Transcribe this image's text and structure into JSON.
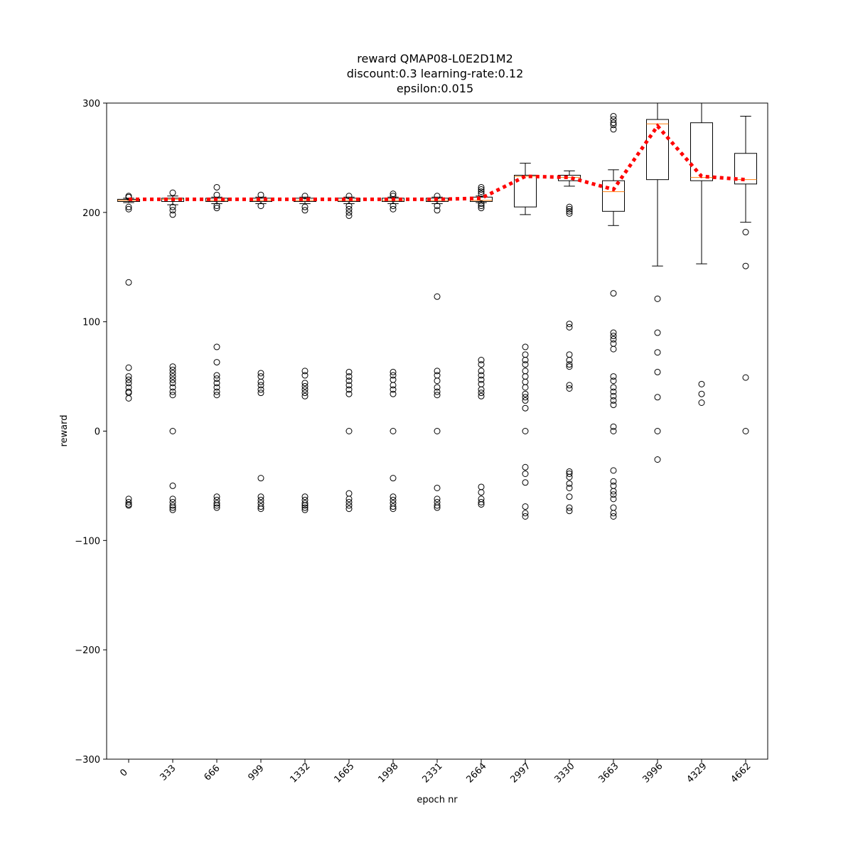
{
  "chart_data": {
    "type": "box",
    "title": [
      "reward QMAP08-L0E2D1M2",
      "discount:0.3 learning-rate:0.12",
      "epsilon:0.015"
    ],
    "x_label": "epoch nr",
    "y_label": "reward",
    "categories": [
      "0",
      "333",
      "666",
      "999",
      "1332",
      "1665",
      "1998",
      "2331",
      "2664",
      "2997",
      "3330",
      "3663",
      "3996",
      "4329",
      "4662"
    ],
    "ylim": [
      -300,
      300
    ],
    "yticks": [
      {
        "value": -300,
        "label": "−300"
      },
      {
        "value": -200,
        "label": "−200"
      },
      {
        "value": -100,
        "label": "−100"
      },
      0,
      100,
      200,
      300
    ],
    "box_color": "#000000",
    "median_color": "#ff7f0e",
    "mean_color": "#ff0000",
    "boxes": [
      {
        "whislo": 209,
        "q1": 210,
        "med": 211,
        "q3": 212,
        "whishi": 213,
        "mean": 212,
        "fliers": [
          215,
          214,
          205,
          203,
          136,
          58,
          50,
          47,
          44,
          40,
          36,
          35,
          30,
          -62,
          -65,
          -67,
          -68
        ]
      },
      {
        "whislo": 207,
        "q1": 210,
        "med": 212,
        "q3": 213,
        "whishi": 215,
        "mean": 212,
        "fliers": [
          218,
          205,
          202,
          198,
          59,
          56,
          53,
          50,
          47,
          44,
          40,
          36,
          33,
          0,
          -50,
          -62,
          -65,
          -68,
          -70,
          -72
        ]
      },
      {
        "whislo": 208,
        "q1": 210,
        "med": 211,
        "q3": 213,
        "whishi": 214,
        "mean": 212,
        "fliers": [
          223,
          216,
          206,
          204,
          77,
          63,
          51,
          48,
          44,
          40,
          36,
          33,
          -60,
          -63,
          -66,
          -68,
          -70
        ]
      },
      {
        "whislo": 208,
        "q1": 210,
        "med": 211,
        "q3": 213,
        "whishi": 214,
        "mean": 212,
        "fliers": [
          216,
          206,
          53,
          50,
          45,
          42,
          38,
          35,
          -43,
          -60,
          -63,
          -66,
          -69,
          -71
        ]
      },
      {
        "whislo": 208,
        "q1": 210,
        "med": 211,
        "q3": 213,
        "whishi": 214,
        "mean": 212,
        "fliers": [
          215,
          205,
          202,
          55,
          51,
          44,
          41,
          38,
          35,
          32,
          -60,
          -63,
          -66,
          -68,
          -70,
          -72
        ]
      },
      {
        "whislo": 208,
        "q1": 210,
        "med": 211,
        "q3": 213,
        "whishi": 214,
        "mean": 212,
        "fliers": [
          215,
          206,
          203,
          200,
          197,
          54,
          50,
          46,
          42,
          38,
          34,
          0,
          -57,
          -62,
          -65,
          -68,
          -71
        ]
      },
      {
        "whislo": 208,
        "q1": 210,
        "med": 211,
        "q3": 213,
        "whishi": 214,
        "mean": 212,
        "fliers": [
          217,
          215,
          206,
          203,
          54,
          51,
          47,
          42,
          38,
          34,
          0,
          -43,
          -60,
          -63,
          -66,
          -69,
          -71
        ]
      },
      {
        "whislo": 208,
        "q1": 210,
        "med": 211,
        "q3": 213,
        "whishi": 214,
        "mean": 212,
        "fliers": [
          215,
          206,
          202,
          123,
          55,
          51,
          46,
          40,
          36,
          33,
          0,
          -52,
          -62,
          -65,
          -68,
          -70
        ]
      },
      {
        "whislo": 209,
        "q1": 210,
        "med": 211,
        "q3": 214,
        "whishi": 215,
        "mean": 213,
        "fliers": [
          223,
          221,
          219,
          217,
          208,
          206,
          204,
          65,
          61,
          55,
          51,
          47,
          43,
          38,
          35,
          32,
          -51,
          -56,
          -62,
          -65,
          -67
        ]
      },
      {
        "whislo": 198,
        "q1": 205,
        "med": 233,
        "q3": 234,
        "whishi": 245,
        "mean": 233,
        "fliers": [
          77,
          70,
          65,
          61,
          55,
          50,
          45,
          40,
          34,
          31,
          28,
          21,
          0,
          -33,
          -39,
          -47,
          -69,
          -75,
          -78
        ]
      },
      {
        "whislo": 224,
        "q1": 229,
        "med": 232,
        "q3": 234,
        "whishi": 238,
        "mean": 232,
        "fliers": [
          205,
          203,
          201,
          199,
          98,
          95,
          70,
          65,
          61,
          59,
          42,
          39,
          -37,
          -39,
          -42,
          -48,
          -52,
          -60,
          -70,
          -73
        ]
      },
      {
        "whislo": 188,
        "q1": 201,
        "med": 219,
        "q3": 229,
        "whishi": 239,
        "mean": 221,
        "fliers": [
          288,
          285,
          282,
          280,
          276,
          126,
          90,
          87,
          84,
          80,
          75,
          50,
          46,
          40,
          36,
          32,
          28,
          24,
          4,
          0,
          -36,
          -46,
          -50,
          -55,
          -58,
          -62,
          -70,
          -75,
          -78
        ]
      },
      {
        "whislo": 151,
        "q1": 230,
        "med": 281,
        "q3": 285,
        "whishi": 300,
        "mean": 279,
        "fliers": [
          121,
          90,
          72,
          54,
          31,
          0,
          -26
        ]
      },
      {
        "whislo": 153,
        "q1": 229,
        "med": 232,
        "q3": 282,
        "whishi": 310,
        "mean": 233,
        "fliers": [
          43,
          34,
          26
        ]
      },
      {
        "whislo": 191,
        "q1": 226,
        "med": 230,
        "q3": 254,
        "whishi": 288,
        "mean": 230,
        "fliers": [
          182,
          151,
          49,
          0
        ]
      }
    ]
  }
}
